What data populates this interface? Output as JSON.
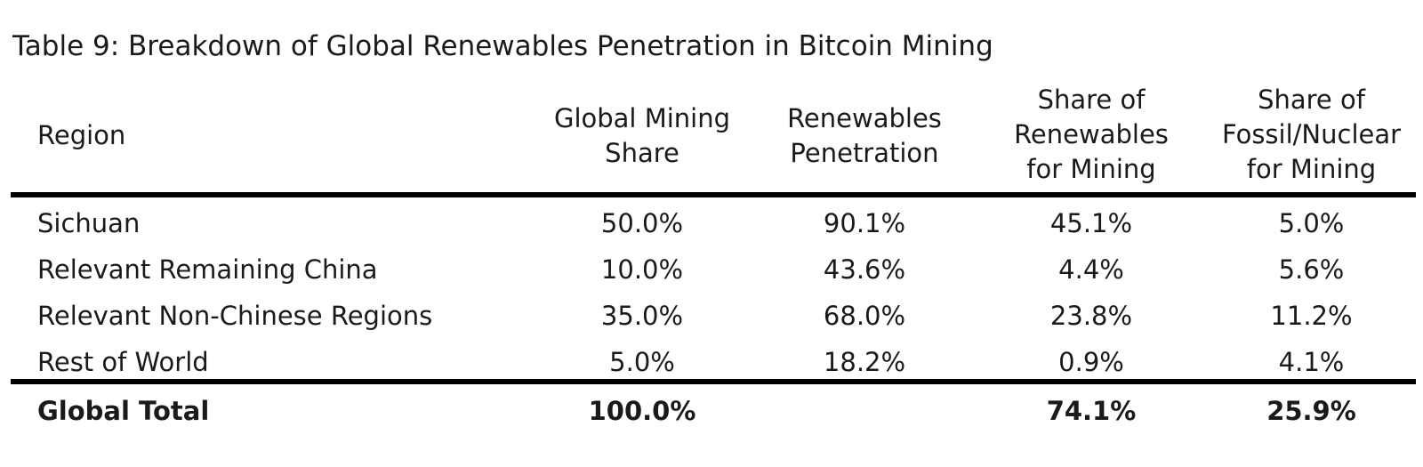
{
  "title": "Table 9: Breakdown of Global Renewables Penetration in Bitcoin Mining",
  "headers": {
    "region": "Region",
    "global_mining_share": [
      "Global Mining",
      "Share"
    ],
    "renewables_penetration": [
      "Renewables",
      "Penetration"
    ],
    "share_renewables": [
      "Share of",
      "Renewables",
      "for Mining"
    ],
    "share_fossil": [
      "Share of",
      "Fossil/Nuclear",
      "for Mining"
    ]
  },
  "rows": [
    {
      "region": "Sichuan",
      "global_mining_share": "50.0%",
      "renewables_penetration": "90.1%",
      "share_renewables": "45.1%",
      "share_fossil": "5.0%"
    },
    {
      "region": "Relevant Remaining China",
      "global_mining_share": "10.0%",
      "renewables_penetration": "43.6%",
      "share_renewables": "4.4%",
      "share_fossil": "5.6%"
    },
    {
      "region": "Relevant Non-Chinese Regions",
      "global_mining_share": "35.0%",
      "renewables_penetration": "68.0%",
      "share_renewables": "23.8%",
      "share_fossil": "11.2%"
    },
    {
      "region": "Rest of World",
      "global_mining_share": "5.0%",
      "renewables_penetration": "18.2%",
      "share_renewables": "0.9%",
      "share_fossil": "4.1%"
    }
  ],
  "total": {
    "region": "Global Total",
    "global_mining_share": "100.0%",
    "renewables_penetration": "",
    "share_renewables": "74.1%",
    "share_fossil": "25.9%"
  }
}
